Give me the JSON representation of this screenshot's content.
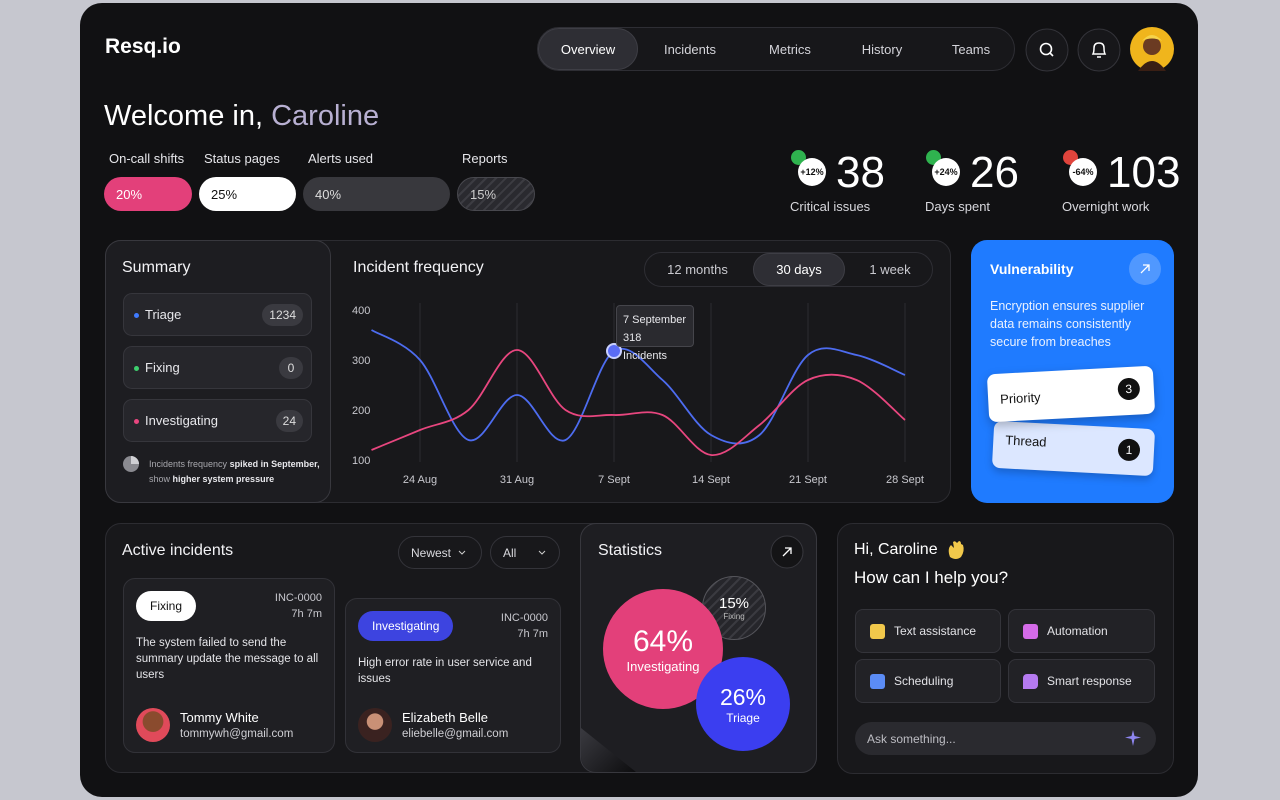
{
  "header": {
    "logo": "Resq.io",
    "nav": [
      "Overview",
      "Incidents",
      "Metrics",
      "History",
      "Teams"
    ],
    "active_nav": 0
  },
  "welcome": {
    "greeting": "Welcome in,",
    "name": "Caroline"
  },
  "progress": [
    {
      "label": "On-call shifts",
      "value": "20%"
    },
    {
      "label": "Status pages",
      "value": "25%"
    },
    {
      "label": "Alerts used",
      "value": "40%"
    },
    {
      "label": "Reports",
      "value": "15%"
    }
  ],
  "stats": [
    {
      "change": "+12%",
      "trend": "up",
      "value": 38,
      "label": "Critical issues"
    },
    {
      "change": "+24%",
      "trend": "up",
      "value": 26,
      "label": "Days spent"
    },
    {
      "change": "-64%",
      "trend": "down",
      "value": 103,
      "label": "Overnight work"
    }
  ],
  "summary": {
    "title": "Summary",
    "items": [
      {
        "name": "Triage",
        "count": 1234,
        "color": "#3f7bff"
      },
      {
        "name": "Fixing",
        "count": 0,
        "color": "#3ecf6e"
      },
      {
        "name": "Investigating",
        "count": 24,
        "color": "#e8467f"
      }
    ],
    "note": {
      "text1": "Incidents frequency",
      "bold1": "spiked in September,",
      "text2": "show",
      "bold2": "higher system pressure"
    }
  },
  "chart_data": {
    "type": "line",
    "title": "Incident frequency",
    "ranges": [
      "12 months",
      "30 days",
      "1 week"
    ],
    "active_range": 1,
    "categories": [
      null,
      "24 Aug",
      null,
      "31 Aug",
      null,
      "7 Sept",
      null,
      "14 Sept",
      null,
      "21 Sept",
      null,
      "28 Sept"
    ],
    "series": [
      {
        "color": "#4d6cf0",
        "values": [
          360,
          300,
          140,
          230,
          140,
          318,
          260,
          150,
          150,
          310,
          310,
          270
        ]
      },
      {
        "color": "#e8467f",
        "values": [
          120,
          160,
          200,
          320,
          200,
          190,
          190,
          110,
          170,
          260,
          260,
          180
        ]
      }
    ],
    "ylim": [
      90,
      420
    ],
    "yticks": [
      100,
      200,
      300,
      400
    ],
    "grid": "x",
    "tooltip": {
      "title": "7 September",
      "text": "318 Incidents"
    }
  },
  "vulnerability": {
    "title": "Vulnerability",
    "text": "Encryption ensures supplier data remains consistently secure from breaches",
    "items": [
      {
        "label": "Priority",
        "count": 3
      },
      {
        "label": "Thread",
        "count": 1
      }
    ]
  },
  "incidents": {
    "title": "Active incidents",
    "filters": [
      "Newest",
      "All"
    ],
    "cards": [
      {
        "status": "Fixing",
        "id": "INC-0000",
        "time": "7h 7m",
        "text": "The system failed to send the summary update the message to all users",
        "name": "Tommy White",
        "email": "tommywh@gmail.com"
      },
      {
        "status": "Investigating",
        "id": "INC-0000",
        "time": "7h 7m",
        "text": "High error rate in user service and issues",
        "name": "Elizabeth Belle",
        "email": "eliebelle@gmail.com"
      }
    ]
  },
  "statistics": {
    "title": "Statistics",
    "bubbles": [
      {
        "value": "64%",
        "label": "Investigating"
      },
      {
        "value": "15%",
        "label": "Fixing"
      },
      {
        "value": "26%",
        "label": "Triage"
      }
    ]
  },
  "assistant": {
    "greeting": "Hi, Caroline",
    "question": "How can I help you?",
    "actions": [
      "Text assistance",
      "Automation",
      "Scheduling",
      "Smart response"
    ],
    "placeholder": "Ask something..."
  }
}
